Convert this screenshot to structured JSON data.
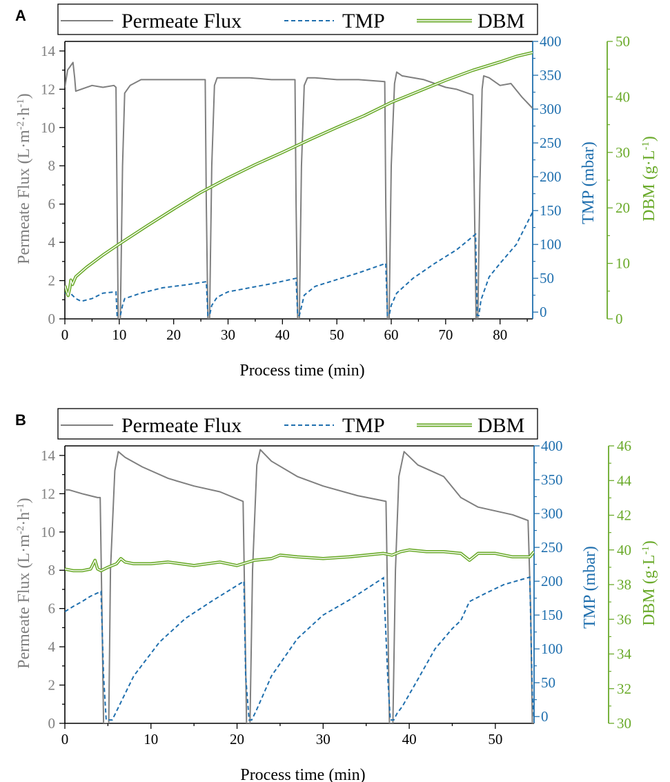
{
  "colors": {
    "flux": "#7f7f7f",
    "tmp": "#1f6fae",
    "dbm": "#6aaa2a"
  },
  "chart_data": [
    {
      "panel_label": "A",
      "type": "line",
      "xlabel": "Process time (min)",
      "xlim": [
        0,
        86
      ],
      "xticks": [
        0,
        10,
        20,
        30,
        40,
        50,
        60,
        70,
        80
      ],
      "legend_position": "top",
      "y_axes": {
        "flux": {
          "label": "Permeate Flux (L·m⁻²·h⁻¹)",
          "lim": [
            0,
            14.5
          ],
          "ticks": [
            0,
            2,
            4,
            6,
            8,
            10,
            12,
            14
          ]
        },
        "tmp": {
          "label": "TMP (mbar)",
          "lim": [
            -10,
            400
          ],
          "ticks": [
            0,
            50,
            100,
            150,
            200,
            250,
            300,
            350,
            400
          ]
        },
        "dbm": {
          "label": "DBM (g·L⁻¹)",
          "lim": [
            0,
            50
          ],
          "ticks": [
            0,
            10,
            20,
            30,
            40,
            50
          ]
        }
      },
      "series": [
        {
          "name": "Permeate Flux",
          "axis": "flux",
          "style": "solid",
          "x": [
            0,
            0.5,
            1,
            1.5,
            1.8,
            2,
            3,
            5,
            7,
            9,
            9.4,
            9.6,
            9.8,
            10.2,
            10.6,
            11,
            12,
            14,
            18,
            22,
            25.8,
            26,
            26.3,
            26.6,
            27,
            27.5,
            28,
            30,
            34,
            38,
            42.3,
            42.5,
            42.8,
            43.1,
            43.5,
            44,
            44.6,
            46,
            50,
            54,
            58.8,
            59,
            59.3,
            59.6,
            60,
            60.6,
            61,
            62,
            66,
            70,
            72,
            75,
            75.3,
            75.6,
            75.9,
            76.3,
            76.7,
            77,
            78,
            80,
            82,
            84,
            86
          ],
          "y": [
            12.1,
            13,
            13.2,
            13.4,
            12.6,
            11.9,
            12,
            12.2,
            12.1,
            12.2,
            12.1,
            6,
            0,
            0,
            8,
            11.8,
            12.2,
            12.5,
            12.5,
            12.5,
            12.5,
            6,
            0,
            0,
            8,
            12.2,
            12.6,
            12.6,
            12.6,
            12.5,
            12.5,
            6,
            0,
            0,
            8,
            12.2,
            12.6,
            12.6,
            12.5,
            12.5,
            12.4,
            6,
            0,
            0,
            8,
            12.3,
            12.9,
            12.7,
            12.5,
            12.1,
            12,
            11.7,
            6,
            0,
            0,
            7,
            12,
            12.7,
            12.6,
            12.2,
            12.3,
            11.6,
            11
          ]
        },
        {
          "name": "TMP",
          "axis": "tmp",
          "style": "dashed",
          "x": [
            0,
            1,
            2,
            3,
            5,
            7,
            9.4,
            9.6,
            9.8,
            10.2,
            10.6,
            11,
            14,
            18,
            22,
            26,
            26.3,
            26.6,
            27,
            28,
            30,
            34,
            38,
            42.5,
            42.8,
            43.1,
            43.5,
            44,
            46,
            50,
            54,
            59,
            59.3,
            59.6,
            60,
            61,
            64,
            68,
            72,
            75.5,
            75.8,
            76.1,
            76.5,
            78,
            80,
            83,
            86
          ],
          "y": [
            28,
            28,
            20,
            16,
            20,
            28,
            30,
            -5,
            -5,
            -5,
            10,
            20,
            28,
            36,
            40,
            45,
            -5,
            -5,
            10,
            22,
            30,
            36,
            42,
            50,
            -5,
            -5,
            8,
            25,
            38,
            48,
            58,
            72,
            -5,
            -5,
            10,
            28,
            50,
            72,
            92,
            115,
            -5,
            -5,
            18,
            52,
            72,
            100,
            148
          ]
        },
        {
          "name": "DBM",
          "axis": "dbm",
          "style": "double",
          "x": [
            0,
            0.3,
            0.6,
            0.9,
            1.1,
            1.4,
            2,
            4,
            7,
            10,
            15,
            20,
            25,
            30,
            35,
            40,
            45,
            50,
            55,
            60,
            65,
            70,
            75,
            80,
            83,
            86
          ],
          "y": [
            6,
            5,
            4.2,
            5.5,
            7,
            6.2,
            7.6,
            9.3,
            11.5,
            13.5,
            16.7,
            19.8,
            22.8,
            25.4,
            27.8,
            30,
            32.3,
            34.5,
            36.6,
            39,
            41,
            43,
            44.8,
            46.3,
            47.3,
            48
          ]
        }
      ]
    },
    {
      "panel_label": "B",
      "type": "line",
      "xlabel": "Process time (min)",
      "xlim": [
        0,
        54.5
      ],
      "xticks": [
        0,
        10,
        20,
        30,
        40,
        50
      ],
      "legend_position": "top",
      "y_axes": {
        "flux": {
          "label": "Permeate Flux (L·m⁻²·h⁻¹)",
          "lim": [
            0,
            14.5
          ],
          "ticks": [
            0,
            2,
            4,
            6,
            8,
            10,
            12,
            14
          ]
        },
        "tmp": {
          "label": "TMP (mbar)",
          "lim": [
            -10,
            400
          ],
          "ticks": [
            0,
            50,
            100,
            150,
            200,
            250,
            300,
            350,
            400
          ]
        },
        "dbm": {
          "label": "DBM (g·L⁻¹)",
          "lim": [
            30,
            46
          ],
          "ticks": [
            30,
            32,
            34,
            36,
            38,
            40,
            42,
            44,
            46
          ]
        }
      },
      "series": [
        {
          "name": "Permeate Flux",
          "axis": "flux",
          "style": "solid",
          "x": [
            0,
            0.5,
            2,
            3.8,
            4.1,
            4.3,
            4.5,
            5.1,
            5.3,
            5.8,
            6.2,
            7,
            9,
            12,
            15,
            18,
            20.7,
            20.9,
            21.1,
            21.5,
            21.8,
            22.3,
            22.7,
            24,
            27,
            30,
            34,
            37.3,
            37.5,
            37.7,
            38.1,
            38.4,
            38.8,
            39.4,
            41,
            44,
            46,
            48,
            52,
            53.8,
            54.1,
            54.3,
            54.5
          ],
          "y": [
            12.2,
            12.2,
            12,
            11.8,
            11.8,
            6,
            0,
            0,
            8,
            13.2,
            14.2,
            13.9,
            13.4,
            12.8,
            12.4,
            12.1,
            11.6,
            6,
            0,
            0,
            8,
            13.5,
            14.3,
            13.7,
            12.9,
            12.4,
            11.9,
            11.6,
            6,
            0,
            0,
            8,
            12.9,
            14.2,
            13.5,
            12.9,
            11.8,
            11.3,
            10.9,
            10.6,
            6,
            0,
            0
          ]
        },
        {
          "name": "TMP",
          "axis": "tmp",
          "style": "dashed",
          "x": [
            0,
            1,
            2,
            3,
            4.2,
            4.5,
            4.8,
            5.2,
            5.5,
            6,
            8,
            11,
            14,
            17,
            20.8,
            21,
            21.4,
            21.7,
            22.2,
            24,
            27,
            30,
            33,
            37,
            37.5,
            37.8,
            38.2,
            38.6,
            39.2,
            41,
            43,
            45,
            46,
            47,
            49,
            51,
            54,
            54.3,
            54.5
          ],
          "y": [
            155,
            163,
            170,
            178,
            185,
            60,
            -5,
            -5,
            -5,
            8,
            60,
            110,
            145,
            170,
            200,
            60,
            -5,
            -5,
            8,
            60,
            115,
            150,
            172,
            205,
            60,
            -5,
            -5,
            5,
            15,
            55,
            100,
            130,
            142,
            170,
            183,
            195,
            206,
            30,
            -5
          ]
        },
        {
          "name": "DBM",
          "axis": "dbm",
          "style": "double",
          "x": [
            0,
            1,
            2,
            3,
            3.5,
            3.8,
            4.2,
            5,
            6,
            6.5,
            7,
            8,
            10,
            12,
            15,
            18,
            20,
            22,
            24,
            25,
            27,
            30,
            33,
            35,
            37,
            38,
            39,
            40,
            42,
            44,
            46,
            47,
            47.5,
            48,
            50,
            52,
            54,
            54.5
          ],
          "y": [
            38.9,
            38.8,
            38.8,
            38.9,
            39.4,
            38.9,
            38.8,
            39,
            39.2,
            39.5,
            39.3,
            39.2,
            39.2,
            39.3,
            39.1,
            39.3,
            39.1,
            39.4,
            39.5,
            39.7,
            39.6,
            39.5,
            39.6,
            39.7,
            39.8,
            39.7,
            39.9,
            40,
            39.9,
            39.9,
            39.8,
            39.4,
            39.6,
            39.8,
            39.8,
            39.6,
            39.6,
            39.9
          ]
        }
      ]
    }
  ]
}
